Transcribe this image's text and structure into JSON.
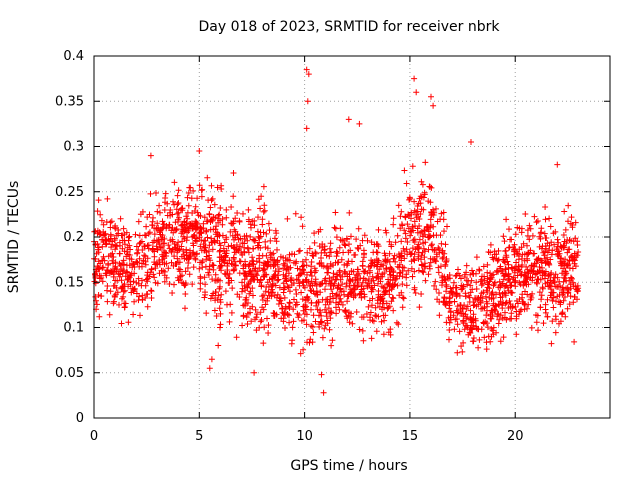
{
  "chart_data": {
    "type": "scatter",
    "title": "Day 018 of 2023, SRMTID for receiver nbrk",
    "xlabel": "GPS time / hours",
    "ylabel": "SRMTID / TECUs",
    "xlim": [
      0,
      24.5
    ],
    "ylim": [
      0,
      0.4
    ],
    "x_ticks": [
      0,
      5,
      10,
      15,
      20
    ],
    "x_tick_labels": [
      "0",
      "5",
      "10",
      "15",
      "20"
    ],
    "y_ticks": [
      0,
      0.05,
      0.1,
      0.15,
      0.2,
      0.25,
      0.3,
      0.35,
      0.4
    ],
    "y_tick_labels": [
      "0",
      "0.05",
      "0.1",
      "0.15",
      "0.2",
      "0.25",
      "0.3",
      "0.35",
      "0.4"
    ],
    "grid": true,
    "marker": "plus",
    "color": "#ff0000",
    "series": [
      {
        "name": "SRMTID",
        "x_range": [
          0,
          23
        ],
        "notes": "dense point cloud sampled from visual envelope",
        "envelope": [
          {
            "x": 0.0,
            "center": 0.18,
            "spread": 0.05
          },
          {
            "x": 1.0,
            "center": 0.17,
            "spread": 0.05
          },
          {
            "x": 2.0,
            "center": 0.16,
            "spread": 0.05
          },
          {
            "x": 3.0,
            "center": 0.19,
            "spread": 0.05
          },
          {
            "x": 4.0,
            "center": 0.19,
            "spread": 0.05
          },
          {
            "x": 5.0,
            "center": 0.2,
            "spread": 0.05
          },
          {
            "x": 6.0,
            "center": 0.18,
            "spread": 0.06
          },
          {
            "x": 7.0,
            "center": 0.17,
            "spread": 0.06
          },
          {
            "x": 8.0,
            "center": 0.17,
            "spread": 0.06
          },
          {
            "x": 9.0,
            "center": 0.15,
            "spread": 0.05
          },
          {
            "x": 10.0,
            "center": 0.14,
            "spread": 0.06
          },
          {
            "x": 11.0,
            "center": 0.14,
            "spread": 0.05
          },
          {
            "x": 12.0,
            "center": 0.16,
            "spread": 0.05
          },
          {
            "x": 13.0,
            "center": 0.15,
            "spread": 0.05
          },
          {
            "x": 14.0,
            "center": 0.15,
            "spread": 0.05
          },
          {
            "x": 15.0,
            "center": 0.2,
            "spread": 0.06
          },
          {
            "x": 16.0,
            "center": 0.2,
            "spread": 0.05
          },
          {
            "x": 17.0,
            "center": 0.13,
            "spread": 0.04
          },
          {
            "x": 18.0,
            "center": 0.12,
            "spread": 0.04
          },
          {
            "x": 19.0,
            "center": 0.14,
            "spread": 0.05
          },
          {
            "x": 20.0,
            "center": 0.16,
            "spread": 0.05
          },
          {
            "x": 21.0,
            "center": 0.17,
            "spread": 0.05
          },
          {
            "x": 22.0,
            "center": 0.16,
            "spread": 0.06
          },
          {
            "x": 23.0,
            "center": 0.17,
            "spread": 0.05
          }
        ],
        "outliers": [
          {
            "x": 10.1,
            "y": 0.385
          },
          {
            "x": 10.2,
            "y": 0.38
          },
          {
            "x": 10.15,
            "y": 0.35
          },
          {
            "x": 10.1,
            "y": 0.32
          },
          {
            "x": 15.2,
            "y": 0.375
          },
          {
            "x": 15.3,
            "y": 0.36
          },
          {
            "x": 16.0,
            "y": 0.355
          },
          {
            "x": 16.1,
            "y": 0.345
          },
          {
            "x": 12.1,
            "y": 0.33
          },
          {
            "x": 12.6,
            "y": 0.325
          },
          {
            "x": 5.0,
            "y": 0.295
          },
          {
            "x": 2.7,
            "y": 0.29
          },
          {
            "x": 22.0,
            "y": 0.28
          },
          {
            "x": 17.9,
            "y": 0.305
          },
          {
            "x": 10.8,
            "y": 0.048
          },
          {
            "x": 10.9,
            "y": 0.028
          },
          {
            "x": 7.6,
            "y": 0.05
          },
          {
            "x": 5.5,
            "y": 0.055
          },
          {
            "x": 5.6,
            "y": 0.065
          }
        ]
      }
    ]
  }
}
